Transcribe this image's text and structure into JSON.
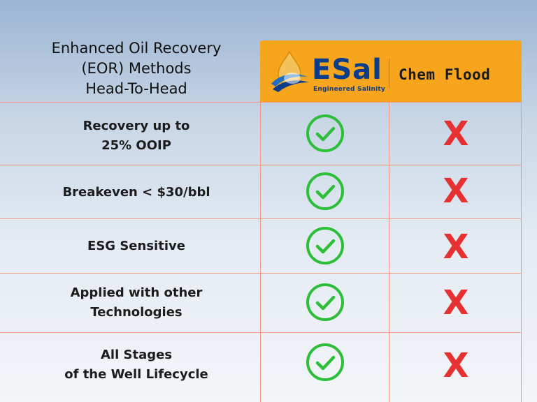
{
  "title_lines": [
    "Enhanced Oil Recovery",
    "(EOR) Methods",
    "Head-To-Head"
  ],
  "header": {
    "brand_name": "ESal",
    "brand_tagline": "Engineered Salinity",
    "competitor": "Chem Flood",
    "bg_color": "#f6a51d"
  },
  "rows": [
    {
      "label_lines": [
        "Recovery up to",
        "25% OOIP"
      ],
      "esal": "check-icon",
      "chem_mark": "X"
    },
    {
      "label_lines": [
        "Breakeven < $30/bbl"
      ],
      "esal": "check-icon",
      "chem_mark": "X"
    },
    {
      "label_lines": [
        "ESG Sensitive"
      ],
      "esal": "check-icon",
      "chem_mark": "X"
    },
    {
      "label_lines": [
        "Applied with other",
        "Technologies"
      ],
      "esal": "check-icon",
      "chem_mark": "X"
    },
    {
      "label_lines": [
        "All Stages",
        "of the Well Lifecycle"
      ],
      "esal": "check-icon",
      "chem_mark": "X"
    }
  ],
  "colors": {
    "check": "#2dbf3a",
    "cross": "#e53131",
    "grid": "#ee9a86"
  }
}
